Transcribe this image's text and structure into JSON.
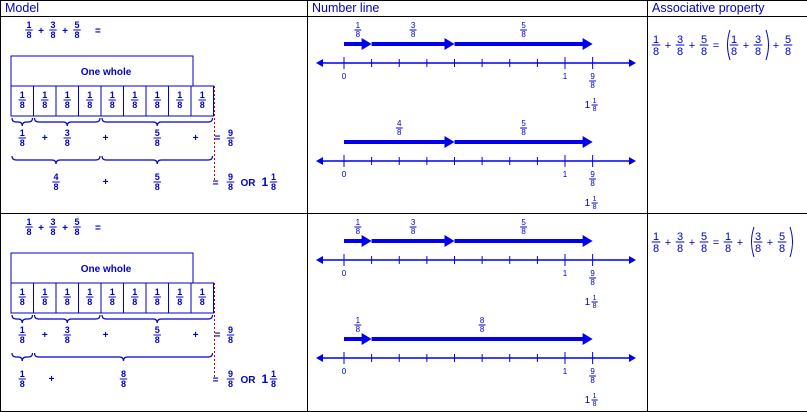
{
  "headers": {
    "model": "Model",
    "number_line": "Number line",
    "associative": "Associative property"
  },
  "colors": {
    "text": "#0000cc",
    "arrow": "#0000ee",
    "border": "#000000",
    "red_dashed": "#cc0000"
  },
  "rows": [
    {
      "model": {
        "expression": {
          "terms": [
            {
              "n": "1",
              "d": "8"
            },
            {
              "n": "3",
              "d": "8"
            },
            {
              "n": "5",
              "d": "8"
            }
          ],
          "equals": "="
        },
        "one_whole": "One whole",
        "bar_pieces": {
          "n": "1",
          "d": "8",
          "count": 9
        },
        "line1": {
          "terms": [
            {
              "n": "1",
              "d": "8"
            },
            {
              "n": "3",
              "d": "8"
            },
            {
              "n": "5",
              "d": "8"
            }
          ],
          "result": {
            "n": "9",
            "d": "8"
          }
        },
        "line2": {
          "terms": [
            {
              "n": "4",
              "d": "8"
            },
            {
              "n": "5",
              "d": "8"
            }
          ],
          "result": {
            "n": "9",
            "d": "8"
          },
          "or": "OR",
          "mixed": {
            "w": "1",
            "n": "1",
            "d": "8"
          }
        }
      },
      "number_line": {
        "top": {
          "labels": [
            {
              "n": "1",
              "d": "8"
            },
            {
              "n": "3",
              "d": "8"
            },
            {
              "n": "5",
              "d": "8"
            }
          ],
          "ticks": [
            "0",
            "1"
          ],
          "end": {
            "n": "9",
            "d": "8"
          },
          "mixed": {
            "w": "1",
            "n": "1",
            "d": "8"
          }
        },
        "bottom": {
          "labels": [
            {
              "n": "4",
              "d": "8"
            },
            {
              "n": "5",
              "d": "8"
            }
          ],
          "ticks": [
            "0",
            "1"
          ],
          "end": {
            "n": "9",
            "d": "8"
          },
          "mixed": {
            "w": "1",
            "n": "1",
            "d": "8"
          }
        }
      },
      "associative": {
        "lhs": [
          {
            "n": "1",
            "d": "8"
          },
          {
            "n": "3",
            "d": "8"
          },
          {
            "n": "5",
            "d": "8"
          }
        ],
        "rhs": [
          {
            "n": "1",
            "d": "8"
          },
          {
            "n": "3",
            "d": "8"
          },
          {
            "n": "5",
            "d": "8"
          }
        ],
        "grouping": "left"
      }
    },
    {
      "model": {
        "expression": {
          "terms": [
            {
              "n": "1",
              "d": "8"
            },
            {
              "n": "3",
              "d": "8"
            },
            {
              "n": "5",
              "d": "8"
            }
          ],
          "equals": "="
        },
        "one_whole": "One whole",
        "bar_pieces": {
          "n": "1",
          "d": "8",
          "count": 9
        },
        "line1": {
          "terms": [
            {
              "n": "1",
              "d": "8"
            },
            {
              "n": "3",
              "d": "8"
            },
            {
              "n": "5",
              "d": "8"
            }
          ],
          "result": {
            "n": "9",
            "d": "8"
          }
        },
        "line2": {
          "terms": [
            {
              "n": "1",
              "d": "8"
            },
            {
              "n": "8",
              "d": "8"
            }
          ],
          "result": {
            "n": "9",
            "d": "8"
          },
          "or": "OR",
          "mixed": {
            "w": "1",
            "n": "1",
            "d": "8"
          }
        }
      },
      "number_line": {
        "top": {
          "labels": [
            {
              "n": "1",
              "d": "8"
            },
            {
              "n": "3",
              "d": "8"
            },
            {
              "n": "5",
              "d": "8"
            }
          ],
          "ticks": [
            "0",
            "1"
          ],
          "end": {
            "n": "9",
            "d": "8"
          },
          "mixed": {
            "w": "1",
            "n": "1",
            "d": "8"
          }
        },
        "bottom": {
          "labels": [
            {
              "n": "1",
              "d": "8"
            },
            {
              "n": "8",
              "d": "8"
            }
          ],
          "ticks": [
            "0",
            "1"
          ],
          "end": {
            "n": "9",
            "d": "8"
          },
          "mixed": {
            "w": "1",
            "n": "1",
            "d": "8"
          }
        }
      },
      "associative": {
        "lhs": [
          {
            "n": "1",
            "d": "8"
          },
          {
            "n": "3",
            "d": "8"
          },
          {
            "n": "5",
            "d": "8"
          }
        ],
        "rhs": [
          {
            "n": "1",
            "d": "8"
          },
          {
            "n": "3",
            "d": "8"
          },
          {
            "n": "5",
            "d": "8"
          }
        ],
        "grouping": "right"
      }
    }
  ]
}
